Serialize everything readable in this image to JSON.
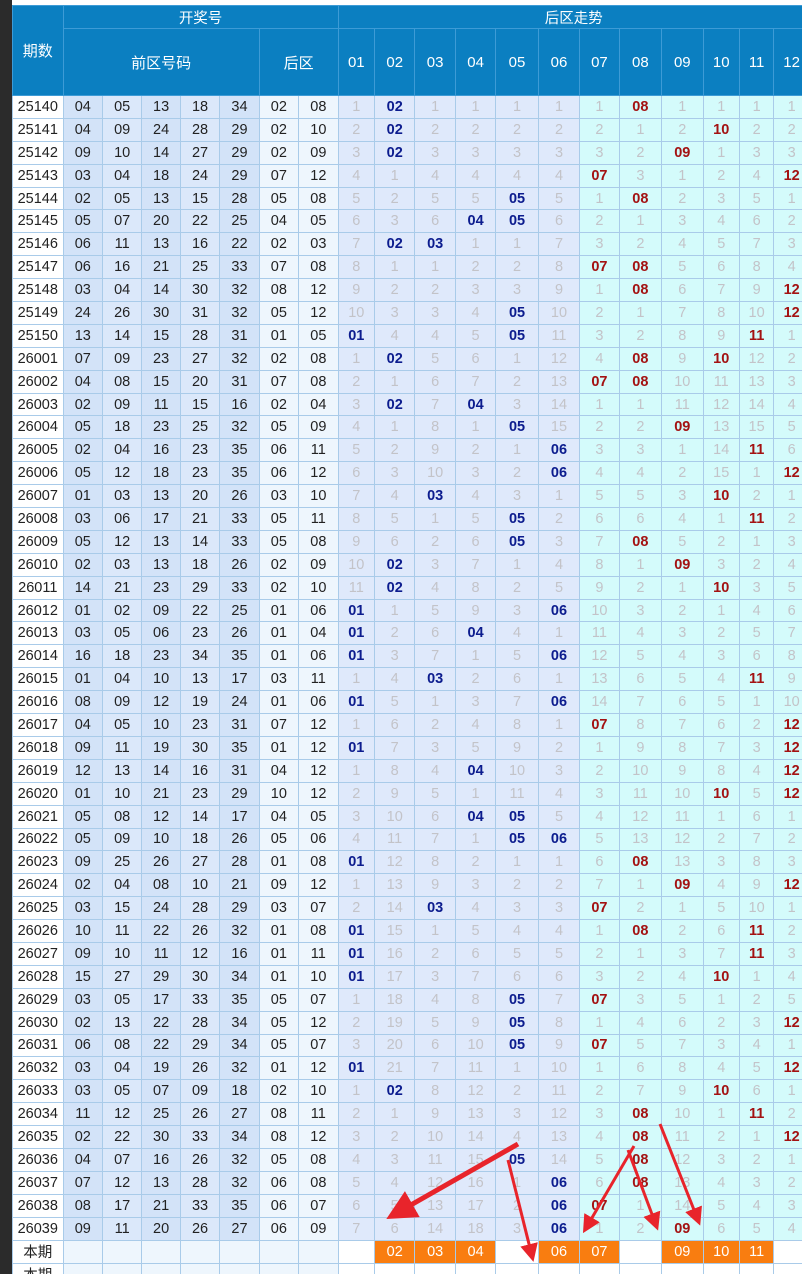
{
  "header": {
    "period": "期数",
    "draw": "开奖号",
    "front": "前区号码",
    "back": "后区",
    "trend": "后区走势"
  },
  "trend_cols": [
    "01",
    "02",
    "03",
    "04",
    "05",
    "06",
    "07",
    "08",
    "09",
    "10",
    "11",
    "12"
  ],
  "colors": {
    "header": "#0b7fc1",
    "hit_low": "#0c1c8e",
    "hit_high": "#a31212",
    "current_mark": "#f97d10",
    "arrow": "#e8242b"
  },
  "rows": [
    {
      "period": "25140",
      "front": [
        "04",
        "05",
        "13",
        "18",
        "34"
      ],
      "back": [
        "02",
        "08"
      ],
      "trend": [
        "1",
        "02",
        "1",
        "1",
        "1",
        "1",
        "1",
        "08",
        "1",
        "1",
        "1",
        "1"
      ]
    },
    {
      "period": "25141",
      "front": [
        "04",
        "09",
        "24",
        "28",
        "29"
      ],
      "back": [
        "02",
        "10"
      ],
      "trend": [
        "2",
        "02",
        "2",
        "2",
        "2",
        "2",
        "2",
        "1",
        "2",
        "10",
        "2",
        "2"
      ]
    },
    {
      "period": "25142",
      "front": [
        "09",
        "10",
        "14",
        "27",
        "29"
      ],
      "back": [
        "02",
        "09"
      ],
      "trend": [
        "3",
        "02",
        "3",
        "3",
        "3",
        "3",
        "3",
        "2",
        "09",
        "1",
        "3",
        "3"
      ]
    },
    {
      "period": "25143",
      "front": [
        "03",
        "04",
        "18",
        "24",
        "29"
      ],
      "back": [
        "07",
        "12"
      ],
      "trend": [
        "4",
        "1",
        "4",
        "4",
        "4",
        "4",
        "07",
        "3",
        "1",
        "2",
        "4",
        "12"
      ]
    },
    {
      "period": "25144",
      "front": [
        "02",
        "05",
        "13",
        "15",
        "28"
      ],
      "back": [
        "05",
        "08"
      ],
      "trend": [
        "5",
        "2",
        "5",
        "5",
        "05",
        "5",
        "1",
        "08",
        "2",
        "3",
        "5",
        "1"
      ]
    },
    {
      "period": "25145",
      "front": [
        "05",
        "07",
        "20",
        "22",
        "25"
      ],
      "back": [
        "04",
        "05"
      ],
      "trend": [
        "6",
        "3",
        "6",
        "04",
        "05",
        "6",
        "2",
        "1",
        "3",
        "4",
        "6",
        "2"
      ]
    },
    {
      "period": "25146",
      "front": [
        "06",
        "11",
        "13",
        "16",
        "22"
      ],
      "back": [
        "02",
        "03"
      ],
      "trend": [
        "7",
        "02",
        "03",
        "1",
        "1",
        "7",
        "3",
        "2",
        "4",
        "5",
        "7",
        "3"
      ]
    },
    {
      "period": "25147",
      "front": [
        "06",
        "16",
        "21",
        "25",
        "33"
      ],
      "back": [
        "07",
        "08"
      ],
      "trend": [
        "8",
        "1",
        "1",
        "2",
        "2",
        "8",
        "07",
        "08",
        "5",
        "6",
        "8",
        "4"
      ]
    },
    {
      "period": "25148",
      "front": [
        "03",
        "04",
        "14",
        "30",
        "32"
      ],
      "back": [
        "08",
        "12"
      ],
      "trend": [
        "9",
        "2",
        "2",
        "3",
        "3",
        "9",
        "1",
        "08",
        "6",
        "7",
        "9",
        "12"
      ]
    },
    {
      "period": "25149",
      "front": [
        "24",
        "26",
        "30",
        "31",
        "32"
      ],
      "back": [
        "05",
        "12"
      ],
      "trend": [
        "10",
        "3",
        "3",
        "4",
        "05",
        "10",
        "2",
        "1",
        "7",
        "8",
        "10",
        "12"
      ]
    },
    {
      "period": "25150",
      "front": [
        "13",
        "14",
        "15",
        "28",
        "31"
      ],
      "back": [
        "01",
        "05"
      ],
      "trend": [
        "01",
        "4",
        "4",
        "5",
        "05",
        "11",
        "3",
        "2",
        "8",
        "9",
        "11",
        "1"
      ]
    },
    {
      "period": "26001",
      "front": [
        "07",
        "09",
        "23",
        "27",
        "32"
      ],
      "back": [
        "02",
        "08"
      ],
      "trend": [
        "1",
        "02",
        "5",
        "6",
        "1",
        "12",
        "4",
        "08",
        "9",
        "10",
        "12",
        "2"
      ]
    },
    {
      "period": "26002",
      "front": [
        "04",
        "08",
        "15",
        "20",
        "31"
      ],
      "back": [
        "07",
        "08"
      ],
      "trend": [
        "2",
        "1",
        "6",
        "7",
        "2",
        "13",
        "07",
        "08",
        "10",
        "11",
        "13",
        "3"
      ]
    },
    {
      "period": "26003",
      "front": [
        "02",
        "09",
        "11",
        "15",
        "16"
      ],
      "back": [
        "02",
        "04"
      ],
      "trend": [
        "3",
        "02",
        "7",
        "04",
        "3",
        "14",
        "1",
        "1",
        "11",
        "12",
        "14",
        "4"
      ]
    },
    {
      "period": "26004",
      "front": [
        "05",
        "18",
        "23",
        "25",
        "32"
      ],
      "back": [
        "05",
        "09"
      ],
      "trend": [
        "4",
        "1",
        "8",
        "1",
        "05",
        "15",
        "2",
        "2",
        "09",
        "13",
        "15",
        "5"
      ]
    },
    {
      "period": "26005",
      "front": [
        "02",
        "04",
        "16",
        "23",
        "35"
      ],
      "back": [
        "06",
        "11"
      ],
      "trend": [
        "5",
        "2",
        "9",
        "2",
        "1",
        "06",
        "3",
        "3",
        "1",
        "14",
        "11",
        "6"
      ]
    },
    {
      "period": "26006",
      "front": [
        "05",
        "12",
        "18",
        "23",
        "35"
      ],
      "back": [
        "06",
        "12"
      ],
      "trend": [
        "6",
        "3",
        "10",
        "3",
        "2",
        "06",
        "4",
        "4",
        "2",
        "15",
        "1",
        "12"
      ]
    },
    {
      "period": "26007",
      "front": [
        "01",
        "03",
        "13",
        "20",
        "26"
      ],
      "back": [
        "03",
        "10"
      ],
      "trend": [
        "7",
        "4",
        "03",
        "4",
        "3",
        "1",
        "5",
        "5",
        "3",
        "10",
        "2",
        "1"
      ]
    },
    {
      "period": "26008",
      "front": [
        "03",
        "06",
        "17",
        "21",
        "33"
      ],
      "back": [
        "05",
        "11"
      ],
      "trend": [
        "8",
        "5",
        "1",
        "5",
        "05",
        "2",
        "6",
        "6",
        "4",
        "1",
        "11",
        "2"
      ]
    },
    {
      "period": "26009",
      "front": [
        "05",
        "12",
        "13",
        "14",
        "33"
      ],
      "back": [
        "05",
        "08"
      ],
      "trend": [
        "9",
        "6",
        "2",
        "6",
        "05",
        "3",
        "7",
        "08",
        "5",
        "2",
        "1",
        "3"
      ]
    },
    {
      "period": "26010",
      "front": [
        "02",
        "03",
        "13",
        "18",
        "26"
      ],
      "back": [
        "02",
        "09"
      ],
      "trend": [
        "10",
        "02",
        "3",
        "7",
        "1",
        "4",
        "8",
        "1",
        "09",
        "3",
        "2",
        "4"
      ]
    },
    {
      "period": "26011",
      "front": [
        "14",
        "21",
        "23",
        "29",
        "33"
      ],
      "back": [
        "02",
        "10"
      ],
      "trend": [
        "11",
        "02",
        "4",
        "8",
        "2",
        "5",
        "9",
        "2",
        "1",
        "10",
        "3",
        "5"
      ]
    },
    {
      "period": "26012",
      "front": [
        "01",
        "02",
        "09",
        "22",
        "25"
      ],
      "back": [
        "01",
        "06"
      ],
      "trend": [
        "01",
        "1",
        "5",
        "9",
        "3",
        "06",
        "10",
        "3",
        "2",
        "1",
        "4",
        "6"
      ]
    },
    {
      "period": "26013",
      "front": [
        "03",
        "05",
        "06",
        "23",
        "26"
      ],
      "back": [
        "01",
        "04"
      ],
      "trend": [
        "01",
        "2",
        "6",
        "04",
        "4",
        "1",
        "11",
        "4",
        "3",
        "2",
        "5",
        "7"
      ]
    },
    {
      "period": "26014",
      "front": [
        "16",
        "18",
        "23",
        "34",
        "35"
      ],
      "back": [
        "01",
        "06"
      ],
      "trend": [
        "01",
        "3",
        "7",
        "1",
        "5",
        "06",
        "12",
        "5",
        "4",
        "3",
        "6",
        "8"
      ]
    },
    {
      "period": "26015",
      "front": [
        "01",
        "04",
        "10",
        "13",
        "17"
      ],
      "back": [
        "03",
        "11"
      ],
      "trend": [
        "1",
        "4",
        "03",
        "2",
        "6",
        "1",
        "13",
        "6",
        "5",
        "4",
        "11",
        "9"
      ]
    },
    {
      "period": "26016",
      "front": [
        "08",
        "09",
        "12",
        "19",
        "24"
      ],
      "back": [
        "01",
        "06"
      ],
      "trend": [
        "01",
        "5",
        "1",
        "3",
        "7",
        "06",
        "14",
        "7",
        "6",
        "5",
        "1",
        "10"
      ]
    },
    {
      "period": "26017",
      "front": [
        "04",
        "05",
        "10",
        "23",
        "31"
      ],
      "back": [
        "07",
        "12"
      ],
      "trend": [
        "1",
        "6",
        "2",
        "4",
        "8",
        "1",
        "07",
        "8",
        "7",
        "6",
        "2",
        "12"
      ]
    },
    {
      "period": "26018",
      "front": [
        "09",
        "11",
        "19",
        "30",
        "35"
      ],
      "back": [
        "01",
        "12"
      ],
      "trend": [
        "01",
        "7",
        "3",
        "5",
        "9",
        "2",
        "1",
        "9",
        "8",
        "7",
        "3",
        "12"
      ]
    },
    {
      "period": "26019",
      "front": [
        "12",
        "13",
        "14",
        "16",
        "31"
      ],
      "back": [
        "04",
        "12"
      ],
      "trend": [
        "1",
        "8",
        "4",
        "04",
        "10",
        "3",
        "2",
        "10",
        "9",
        "8",
        "4",
        "12"
      ]
    },
    {
      "period": "26020",
      "front": [
        "01",
        "10",
        "21",
        "23",
        "29"
      ],
      "back": [
        "10",
        "12"
      ],
      "trend": [
        "2",
        "9",
        "5",
        "1",
        "11",
        "4",
        "3",
        "11",
        "10",
        "10",
        "5",
        "12"
      ]
    },
    {
      "period": "26021",
      "front": [
        "05",
        "08",
        "12",
        "14",
        "17"
      ],
      "back": [
        "04",
        "05"
      ],
      "trend": [
        "3",
        "10",
        "6",
        "04",
        "05",
        "5",
        "4",
        "12",
        "11",
        "1",
        "6",
        "1"
      ]
    },
    {
      "period": "26022",
      "front": [
        "05",
        "09",
        "10",
        "18",
        "26"
      ],
      "back": [
        "05",
        "06"
      ],
      "trend": [
        "4",
        "11",
        "7",
        "1",
        "05",
        "06",
        "5",
        "13",
        "12",
        "2",
        "7",
        "2"
      ]
    },
    {
      "period": "26023",
      "front": [
        "09",
        "25",
        "26",
        "27",
        "28"
      ],
      "back": [
        "01",
        "08"
      ],
      "trend": [
        "01",
        "12",
        "8",
        "2",
        "1",
        "1",
        "6",
        "08",
        "13",
        "3",
        "8",
        "3"
      ]
    },
    {
      "period": "26024",
      "front": [
        "02",
        "04",
        "08",
        "10",
        "21"
      ],
      "back": [
        "09",
        "12"
      ],
      "trend": [
        "1",
        "13",
        "9",
        "3",
        "2",
        "2",
        "7",
        "1",
        "09",
        "4",
        "9",
        "12"
      ]
    },
    {
      "period": "26025",
      "front": [
        "03",
        "15",
        "24",
        "28",
        "29"
      ],
      "back": [
        "03",
        "07"
      ],
      "trend": [
        "2",
        "14",
        "03",
        "4",
        "3",
        "3",
        "07",
        "2",
        "1",
        "5",
        "10",
        "1"
      ]
    },
    {
      "period": "26026",
      "front": [
        "10",
        "11",
        "22",
        "26",
        "32"
      ],
      "back": [
        "01",
        "08"
      ],
      "trend": [
        "01",
        "15",
        "1",
        "5",
        "4",
        "4",
        "1",
        "08",
        "2",
        "6",
        "11",
        "2"
      ]
    },
    {
      "period": "26027",
      "front": [
        "09",
        "10",
        "11",
        "12",
        "16"
      ],
      "back": [
        "01",
        "11"
      ],
      "trend": [
        "01",
        "16",
        "2",
        "6",
        "5",
        "5",
        "2",
        "1",
        "3",
        "7",
        "11",
        "3"
      ]
    },
    {
      "period": "26028",
      "front": [
        "15",
        "27",
        "29",
        "30",
        "34"
      ],
      "back": [
        "01",
        "10"
      ],
      "trend": [
        "01",
        "17",
        "3",
        "7",
        "6",
        "6",
        "3",
        "2",
        "4",
        "10",
        "1",
        "4"
      ]
    },
    {
      "period": "26029",
      "front": [
        "03",
        "05",
        "17",
        "33",
        "35"
      ],
      "back": [
        "05",
        "07"
      ],
      "trend": [
        "1",
        "18",
        "4",
        "8",
        "05",
        "7",
        "07",
        "3",
        "5",
        "1",
        "2",
        "5"
      ]
    },
    {
      "period": "26030",
      "front": [
        "02",
        "13",
        "22",
        "28",
        "34"
      ],
      "back": [
        "05",
        "12"
      ],
      "trend": [
        "2",
        "19",
        "5",
        "9",
        "05",
        "8",
        "1",
        "4",
        "6",
        "2",
        "3",
        "12"
      ]
    },
    {
      "period": "26031",
      "front": [
        "06",
        "08",
        "22",
        "29",
        "34"
      ],
      "back": [
        "05",
        "07"
      ],
      "trend": [
        "3",
        "20",
        "6",
        "10",
        "05",
        "9",
        "07",
        "5",
        "7",
        "3",
        "4",
        "1"
      ]
    },
    {
      "period": "26032",
      "front": [
        "03",
        "04",
        "19",
        "26",
        "32"
      ],
      "back": [
        "01",
        "12"
      ],
      "trend": [
        "01",
        "21",
        "7",
        "11",
        "1",
        "10",
        "1",
        "6",
        "8",
        "4",
        "5",
        "12"
      ]
    },
    {
      "period": "26033",
      "front": [
        "03",
        "05",
        "07",
        "09",
        "18"
      ],
      "back": [
        "02",
        "10"
      ],
      "trend": [
        "1",
        "02",
        "8",
        "12",
        "2",
        "11",
        "2",
        "7",
        "9",
        "10",
        "6",
        "1"
      ]
    },
    {
      "period": "26034",
      "front": [
        "11",
        "12",
        "25",
        "26",
        "27"
      ],
      "back": [
        "08",
        "11"
      ],
      "trend": [
        "2",
        "1",
        "9",
        "13",
        "3",
        "12",
        "3",
        "08",
        "10",
        "1",
        "11",
        "2"
      ]
    },
    {
      "period": "26035",
      "front": [
        "02",
        "22",
        "30",
        "33",
        "34"
      ],
      "back": [
        "08",
        "12"
      ],
      "trend": [
        "3",
        "2",
        "10",
        "14",
        "4",
        "13",
        "4",
        "08",
        "11",
        "2",
        "1",
        "12"
      ]
    },
    {
      "period": "26036",
      "front": [
        "04",
        "07",
        "16",
        "26",
        "32"
      ],
      "back": [
        "05",
        "08"
      ],
      "trend": [
        "4",
        "3",
        "11",
        "15",
        "05",
        "14",
        "5",
        "08",
        "12",
        "3",
        "2",
        "1"
      ]
    },
    {
      "period": "26037",
      "front": [
        "07",
        "12",
        "13",
        "28",
        "32"
      ],
      "back": [
        "06",
        "08"
      ],
      "trend": [
        "5",
        "4",
        "12",
        "16",
        "1",
        "06",
        "6",
        "08",
        "13",
        "4",
        "3",
        "2"
      ]
    },
    {
      "period": "26038",
      "front": [
        "08",
        "17",
        "21",
        "33",
        "35"
      ],
      "back": [
        "06",
        "07"
      ],
      "trend": [
        "6",
        "5",
        "13",
        "17",
        "2",
        "06",
        "07",
        "1",
        "14",
        "5",
        "4",
        "3"
      ]
    },
    {
      "period": "26039",
      "front": [
        "09",
        "11",
        "20",
        "26",
        "27"
      ],
      "back": [
        "06",
        "09"
      ],
      "trend": [
        "7",
        "6",
        "14",
        "18",
        "3",
        "06",
        "1",
        "2",
        "09",
        "6",
        "5",
        "4"
      ]
    }
  ],
  "current": {
    "label": "本期",
    "marks": [
      "",
      "02",
      "03",
      "04",
      "",
      "06",
      "07",
      "",
      "09",
      "10",
      "11",
      ""
    ]
  },
  "next": {
    "label": "本期"
  }
}
